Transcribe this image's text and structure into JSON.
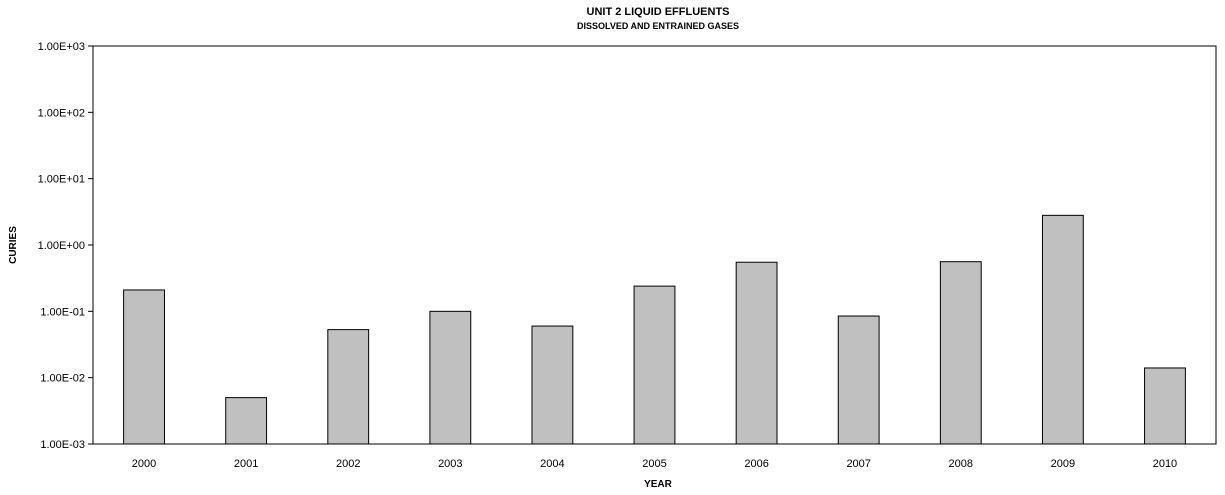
{
  "chart_data": {
    "type": "bar",
    "title": "UNIT 2 LIQUID EFFLUENTS",
    "subtitle": "DISSOLVED AND ENTRAINED GASES",
    "xlabel": "YEAR",
    "ylabel": "CURIES",
    "yscale": "log",
    "ylim": [
      0.001,
      1000
    ],
    "yticks": [
      0.001,
      0.01,
      0.1,
      1,
      10,
      100,
      1000
    ],
    "ytick_labels": [
      "1.00E-03",
      "1.00E-02",
      "1.00E-01",
      "1.00E+00",
      "1.00E+01",
      "1.00E+02",
      "1.00E+03"
    ],
    "categories": [
      "2000",
      "2001",
      "2002",
      "2003",
      "2004",
      "2005",
      "2006",
      "2007",
      "2008",
      "2009",
      "2010"
    ],
    "values": [
      0.21,
      0.005,
      0.053,
      0.1,
      0.06,
      0.24,
      0.55,
      0.085,
      0.56,
      2.8,
      0.014
    ],
    "bar_color": "#c0c0c0",
    "grid": false,
    "legend": "none"
  }
}
